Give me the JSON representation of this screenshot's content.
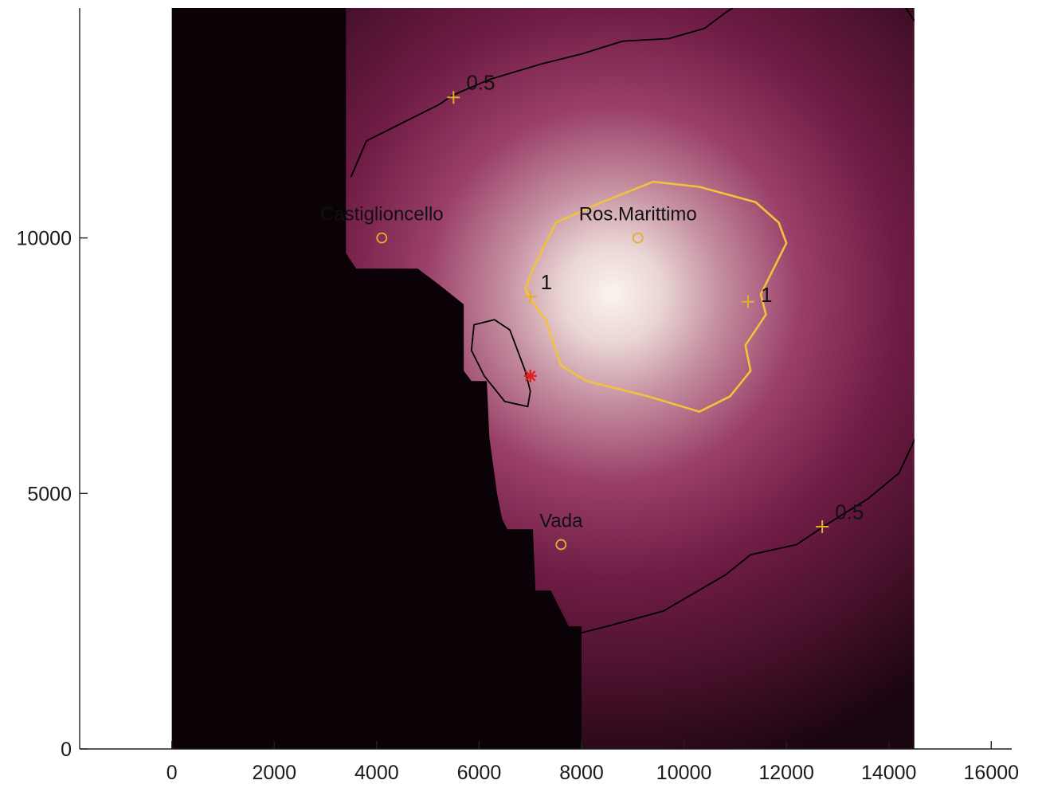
{
  "chart_data": {
    "type": "heatmap",
    "title": "",
    "xlabel": "",
    "ylabel": "",
    "xlim": [
      -1800,
      16400
    ],
    "ylim": [
      0,
      14500
    ],
    "xticks": [
      0,
      2000,
      4000,
      6000,
      8000,
      10000,
      12000,
      14000,
      16000
    ],
    "yticks": [
      0,
      5000,
      10000
    ],
    "xtick_labels": [
      "0",
      "2000",
      "4000",
      "6000",
      "8000",
      "10000",
      "12000",
      "14000",
      "16000"
    ],
    "ytick_labels": [
      "0",
      "5000",
      "10000"
    ],
    "colormap": "black to magenta to white",
    "data_extent": {
      "x": [
        0,
        14500
      ],
      "y": [
        0,
        14500
      ]
    },
    "peak": {
      "x": 8600,
      "y": 8900
    },
    "land_color": "#0a0206",
    "colors": {
      "low": "#1a0510",
      "mid": "#7a1e48",
      "high": "#f4e8e4",
      "contour_outer": "#000000",
      "contour_inner": "#f2c23c",
      "marker": "#e0b030",
      "source": "#e02020"
    },
    "land_polygon": [
      [
        -100,
        0
      ],
      [
        -100,
        14500
      ],
      [
        3400,
        14500
      ],
      [
        3400,
        9700
      ],
      [
        3600,
        9400
      ],
      [
        4800,
        9400
      ],
      [
        5200,
        9100
      ],
      [
        5700,
        8700
      ],
      [
        5700,
        7400
      ],
      [
        5850,
        7200
      ],
      [
        6150,
        7200
      ],
      [
        6200,
        6100
      ],
      [
        6350,
        5000
      ],
      [
        6450,
        4500
      ],
      [
        6550,
        4300
      ],
      [
        7050,
        4300
      ],
      [
        7100,
        3100
      ],
      [
        7400,
        3100
      ],
      [
        7750,
        2400
      ],
      [
        8000,
        2400
      ],
      [
        8000,
        0
      ]
    ],
    "contours": [
      {
        "level": "0.5",
        "style": "outer",
        "segments": [
          [
            [
              3500,
              11200
            ],
            [
              3800,
              11900
            ],
            [
              4600,
              12300
            ],
            [
              5200,
              12600
            ],
            [
              5500,
              12800
            ],
            [
              6200,
              13100
            ],
            [
              7200,
              13400
            ],
            [
              8000,
              13600
            ],
            [
              8800,
              13850
            ],
            [
              9700,
              13900
            ],
            [
              10400,
              14100
            ],
            [
              10800,
              14400
            ],
            [
              11100,
              14600
            ]
          ],
          [
            [
              13800,
              14800
            ],
            [
              14200,
              14700
            ],
            [
              14500,
              14250
            ]
          ],
          [
            [
              7900,
              2250
            ],
            [
              8500,
              2400
            ],
            [
              9600,
              2700
            ],
            [
              10800,
              3400
            ],
            [
              11300,
              3800
            ],
            [
              12200,
              4000
            ],
            [
              12800,
              4400
            ],
            [
              13600,
              4900
            ],
            [
              14200,
              5400
            ],
            [
              14550,
              6150
            ]
          ]
        ],
        "markers": [
          [
            5500,
            12750
          ],
          [
            12700,
            4350
          ]
        ],
        "labels": [
          {
            "text": "0.5",
            "x": 5750,
            "y": 12900
          },
          {
            "text": "0.5",
            "x": 12950,
            "y": 4500
          }
        ]
      },
      {
        "level": "1",
        "style": "inner",
        "segments": [
          [
            [
              7100,
              9500
            ],
            [
              7500,
              10300
            ],
            [
              8400,
              10700
            ],
            [
              9400,
              11100
            ],
            [
              10300,
              11000
            ],
            [
              11400,
              10700
            ],
            [
              11850,
              10300
            ],
            [
              12000,
              9900
            ],
            [
              11500,
              8900
            ],
            [
              11600,
              8500
            ],
            [
              11200,
              7900
            ],
            [
              11300,
              7400
            ],
            [
              10900,
              6900
            ],
            [
              10300,
              6600
            ],
            [
              9300,
              6900
            ],
            [
              8100,
              7200
            ],
            [
              7600,
              7500
            ],
            [
              7300,
              8400
            ],
            [
              7000,
              8800
            ],
            [
              6900,
              9000
            ],
            [
              7100,
              9500
            ]
          ]
        ],
        "markers": [
          [
            7000,
            8850
          ],
          [
            11250,
            8750
          ]
        ],
        "labels": [
          {
            "text": "1",
            "x": 7200,
            "y": 9000
          },
          {
            "text": "1",
            "x": 11500,
            "y": 8750
          }
        ]
      },
      {
        "level": "island",
        "style": "outer",
        "segments": [
          [
            [
              5900,
              8300
            ],
            [
              6300,
              8400
            ],
            [
              6600,
              8200
            ],
            [
              6900,
              7400
            ],
            [
              7000,
              7000
            ],
            [
              6950,
              6700
            ],
            [
              6500,
              6800
            ],
            [
              6100,
              7300
            ],
            [
              5850,
              7800
            ],
            [
              5900,
              8300
            ]
          ]
        ],
        "markers": [],
        "labels": []
      }
    ],
    "places": [
      {
        "name": "Castiglioncello",
        "x": 4100,
        "y": 10000
      },
      {
        "name": "Ros.Marittimo",
        "x": 9100,
        "y": 10000
      },
      {
        "name": "Vada",
        "x": 7600,
        "y": 4000
      }
    ],
    "source_marker": {
      "x": 7000,
      "y": 7300,
      "symbol": "*"
    }
  }
}
